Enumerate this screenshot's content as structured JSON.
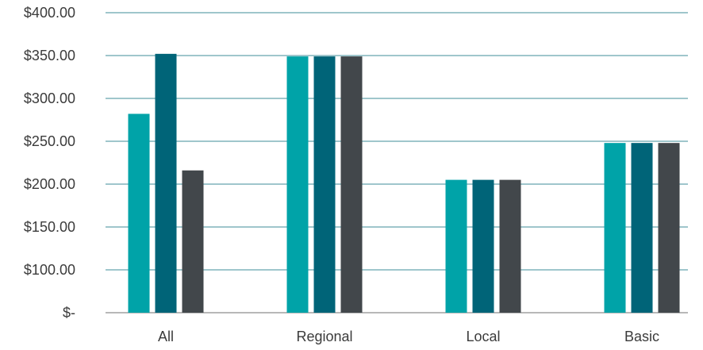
{
  "chart_data": {
    "type": "bar",
    "title": "",
    "xlabel": "",
    "ylabel": "",
    "categories": [
      "All",
      "Regional",
      "Local",
      "Basic"
    ],
    "series": [
      {
        "color": "#00a3a8",
        "values": [
          282,
          349,
          205,
          248
        ]
      },
      {
        "color": "#006478",
        "values": [
          352,
          349,
          205,
          248
        ]
      },
      {
        "color": "#42474b",
        "values": [
          216,
          349,
          205,
          248
        ]
      }
    ],
    "ylim": [
      50,
      400
    ],
    "yticks": [
      50,
      100,
      150,
      200,
      250,
      300,
      350,
      400
    ],
    "ytick_labels": [
      "$-",
      "$100.00",
      "$150.00",
      "$200.00",
      "$250.00",
      "$300.00",
      "$350.00",
      "$400.00"
    ],
    "grid": true,
    "legend": "none",
    "gridline_color": "#9fc6cc",
    "axis_color": "#b8b8b8"
  }
}
